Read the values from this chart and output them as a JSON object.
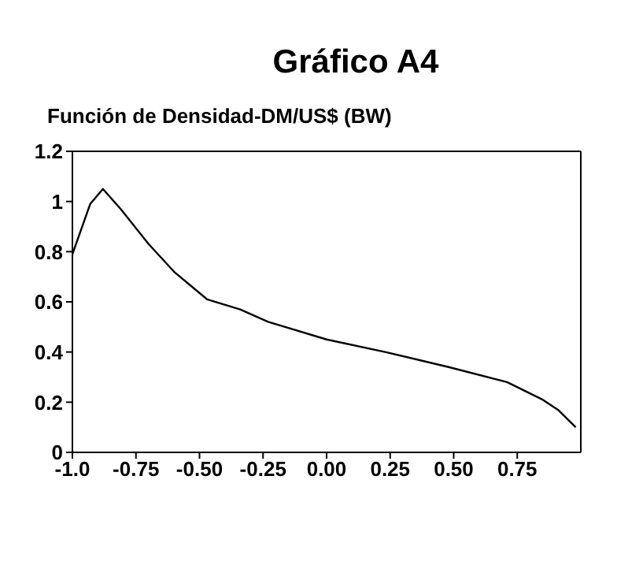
{
  "chart_data": {
    "type": "line",
    "title": "Gráfico A4",
    "subtitle": "Función de Densidad-DM/US$ (BW)",
    "x": [
      -1.0,
      -0.93,
      -0.88,
      -0.81,
      -0.7,
      -0.6,
      -0.47,
      -0.34,
      -0.23,
      0.0,
      0.23,
      0.48,
      0.71,
      0.85,
      0.91,
      0.98
    ],
    "series": [
      {
        "color": "#000000",
        "values": [
          0.79,
          0.99,
          1.05,
          0.97,
          0.83,
          0.72,
          0.61,
          0.57,
          0.52,
          0.45,
          0.4,
          0.34,
          0.28,
          0.21,
          0.17,
          0.1
        ]
      }
    ],
    "xlim": [
      -1,
      1
    ],
    "xticks": [
      {
        "value": -1,
        "label": "-1.0"
      },
      {
        "value": -0.75,
        "label": "-0.75"
      },
      {
        "value": -0.5,
        "label": "-0.50"
      },
      {
        "value": -0.25,
        "label": "-0.25"
      },
      {
        "value": 0,
        "label": "0.00"
      },
      {
        "value": 0.25,
        "label": "0.25"
      },
      {
        "value": 0.5,
        "label": "0.50"
      },
      {
        "value": 0.75,
        "label": "0.75"
      }
    ],
    "ylim": [
      0,
      1.2
    ],
    "yticks": [
      0,
      0.2,
      0.4,
      0.6,
      0.8,
      1,
      1.2
    ],
    "grid": false,
    "legend": false,
    "marker": "none",
    "line_style": "solid"
  }
}
